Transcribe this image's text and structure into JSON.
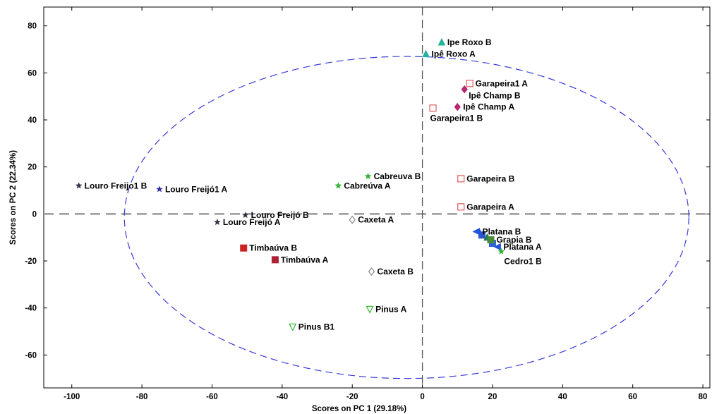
{
  "chart_data": {
    "type": "scatter",
    "xlabel": "Scores on PC 1 (29.18%)",
    "ylabel": "Scores on PC 2 (22.34%)",
    "xlim": [
      -108,
      82
    ],
    "ylim": [
      -74,
      88
    ],
    "xticks": [
      "-100",
      "-80",
      "-60",
      "-40",
      "-20",
      "0",
      "20",
      "40",
      "60",
      "80"
    ],
    "xtick_values": [
      -100,
      -80,
      -60,
      -40,
      -20,
      0,
      20,
      40,
      60,
      80
    ],
    "yticks": [
      "80",
      "60",
      "40",
      "20",
      "0",
      "-20",
      "-40",
      "-60"
    ],
    "ytick_values": [
      80,
      60,
      40,
      20,
      0,
      -20,
      -40,
      -60
    ],
    "reference_lines": {
      "x": 0,
      "y": 0
    },
    "confidence_ellipse": {
      "center": [
        -4.5,
        -1.5
      ],
      "radius_x": 80.5,
      "radius_y": 68.5,
      "color": "#3a3ad8"
    },
    "points": [
      {
        "label": "Ipe Roxo B",
        "x": 5.5,
        "y": 73,
        "marker": "triangle-up",
        "color": "#22b39a",
        "label_pos": "right"
      },
      {
        "label": "Ipê Roxo A",
        "x": 1,
        "y": 68,
        "marker": "triangle-up",
        "color": "#22b39a",
        "label_pos": "right"
      },
      {
        "label": "Garapeira1 A",
        "x": 13.5,
        "y": 55.5,
        "marker": "square-open",
        "color": "#e05b5b",
        "label_pos": "right"
      },
      {
        "label": "Ipê Champ B",
        "x": 12,
        "y": 53,
        "marker": "diamond",
        "color": "#b52a6e",
        "label_pos": "right-below"
      },
      {
        "label": "Ipê Champ A",
        "x": 10,
        "y": 45.5,
        "marker": "diamond",
        "color": "#b52a6e",
        "label_pos": "right"
      },
      {
        "label": "Garapeira1 B",
        "x": 3,
        "y": 45,
        "marker": "square-open",
        "color": "#e05b5b",
        "label_pos": "below"
      },
      {
        "label": "Cabreuva B",
        "x": -15.5,
        "y": 16,
        "marker": "star",
        "color": "#2fb32f",
        "label_pos": "right"
      },
      {
        "label": "Cabreúva A",
        "x": -24,
        "y": 12,
        "marker": "star",
        "color": "#2fb32f",
        "label_pos": "right"
      },
      {
        "label": "Garapeira B",
        "x": 11,
        "y": 15,
        "marker": "square-open",
        "color": "#e05b5b",
        "label_pos": "right"
      },
      {
        "label": "Garapeira A",
        "x": 11,
        "y": 3,
        "marker": "square-open",
        "color": "#e05b5b",
        "label_pos": "right"
      },
      {
        "label": "Louro Freijo1 B",
        "x": -98,
        "y": 12,
        "marker": "star",
        "color": "#333344",
        "label_pos": "right"
      },
      {
        "label": "Louro Freijó1 A",
        "x": -75,
        "y": 10.5,
        "marker": "star",
        "color": "#3333aa",
        "label_pos": "right"
      },
      {
        "label": "Louro Freijó B",
        "x": -50.5,
        "y": -0.5,
        "marker": "star",
        "color": "#333344",
        "label_pos": "right"
      },
      {
        "label": "Louro Freijó A",
        "x": -58.5,
        "y": -3.5,
        "marker": "star",
        "color": "#333344",
        "label_pos": "right"
      },
      {
        "label": "Caxeta A",
        "x": -20,
        "y": -2.5,
        "marker": "diamond-open",
        "color": "#888888",
        "label_pos": "right"
      },
      {
        "label": "Timbaúva B",
        "x": -51,
        "y": -14.5,
        "marker": "square",
        "color": "#cc2222",
        "label_pos": "right"
      },
      {
        "label": "Timbaúva A",
        "x": -42,
        "y": -19.5,
        "marker": "square",
        "color": "#aa2233",
        "label_pos": "right"
      },
      {
        "label": "Caxeta B",
        "x": -14.5,
        "y": -24.5,
        "marker": "diamond-open",
        "color": "#888888",
        "label_pos": "right"
      },
      {
        "label": "Pinus A",
        "x": -15,
        "y": -40.5,
        "marker": "triangle-down-open",
        "color": "#2fb32f",
        "label_pos": "right"
      },
      {
        "label": "Pinus B1",
        "x": -37,
        "y": -48,
        "marker": "triangle-down-open",
        "color": "#2fb32f",
        "label_pos": "right"
      },
      {
        "label": "Platana B",
        "x": 15.5,
        "y": -7.5,
        "marker": "triangle-left",
        "color": "#2255dd",
        "label_pos": "right"
      },
      {
        "label": "Grapia B",
        "x": 19.5,
        "y": -11,
        "marker": "square",
        "color": "#4a8a3a",
        "label_pos": "right"
      },
      {
        "label": "Platana A",
        "x": 21.5,
        "y": -14,
        "marker": "triangle-left",
        "color": "#2255dd",
        "label_pos": "right"
      },
      {
        "label": "Cedro1 B",
        "x": 22.5,
        "y": -16,
        "marker": "star",
        "color": "#2fb32f",
        "label_pos": "below-right"
      }
    ],
    "extra_markers": [
      {
        "x": 17,
        "y": -9,
        "marker": "square",
        "color": "#3355cc"
      },
      {
        "x": 18.5,
        "y": -10,
        "marker": "triangle-up",
        "color": "#227755"
      },
      {
        "x": 20,
        "y": -12.5,
        "marker": "square",
        "color": "#3366cc"
      },
      {
        "x": 16.5,
        "y": -8,
        "marker": "star",
        "color": "#2255dd"
      }
    ]
  }
}
